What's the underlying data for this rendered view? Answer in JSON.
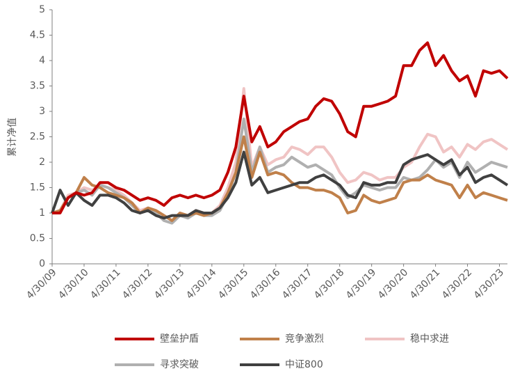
{
  "chart_data": {
    "type": "line",
    "y_label": "累计净值",
    "categories": [
      "4/30/09",
      null,
      null,
      null,
      "4/30/10",
      null,
      null,
      null,
      "4/30/11",
      null,
      null,
      null,
      "4/30/12",
      null,
      null,
      null,
      "4/30/13",
      null,
      null,
      null,
      "4/30/14",
      null,
      null,
      null,
      "4/30/15",
      null,
      null,
      null,
      "4/30/16",
      null,
      null,
      null,
      "4/30/17",
      null,
      null,
      null,
      "4/30/18",
      null,
      null,
      null,
      "4/30/19",
      null,
      null,
      null,
      "4/30/20",
      null,
      null,
      null,
      "4/30/21",
      null,
      null,
      null,
      "4/30/22",
      null,
      null,
      null,
      "4/30/23",
      null
    ],
    "series": [
      {
        "name": "壁垒护盾",
        "color": "#c00000",
        "values": [
          1.0,
          1.0,
          1.3,
          1.4,
          1.35,
          1.4,
          1.6,
          1.6,
          1.5,
          1.45,
          1.35,
          1.25,
          1.3,
          1.25,
          1.15,
          1.3,
          1.35,
          1.3,
          1.35,
          1.3,
          1.35,
          1.45,
          1.8,
          2.3,
          3.3,
          2.4,
          2.7,
          2.3,
          2.4,
          2.6,
          2.7,
          2.8,
          2.85,
          3.1,
          3.25,
          3.2,
          2.95,
          2.6,
          2.5,
          3.1,
          3.1,
          3.15,
          3.2,
          3.3,
          3.9,
          3.9,
          4.2,
          4.35,
          3.9,
          4.1,
          3.8,
          3.6,
          3.7,
          3.3,
          3.8,
          3.75,
          3.8,
          3.65
        ]
      },
      {
        "name": "竞争激烈",
        "color": "#c0804a",
        "values": [
          1.0,
          1.05,
          1.3,
          1.4,
          1.7,
          1.55,
          1.5,
          1.4,
          1.35,
          1.3,
          1.2,
          1.0,
          1.1,
          1.05,
          0.95,
          0.85,
          1.0,
          0.95,
          1.0,
          0.95,
          1.0,
          1.1,
          1.4,
          1.8,
          2.5,
          1.7,
          2.2,
          1.75,
          1.8,
          1.75,
          1.6,
          1.5,
          1.5,
          1.45,
          1.45,
          1.4,
          1.3,
          1.0,
          1.05,
          1.35,
          1.25,
          1.2,
          1.25,
          1.3,
          1.6,
          1.65,
          1.65,
          1.75,
          1.65,
          1.6,
          1.55,
          1.3,
          1.55,
          1.3,
          1.4,
          1.35,
          1.3,
          1.25
        ]
      },
      {
        "name": "稳中求进",
        "color": "#f0c4c4",
        "values": [
          1.0,
          1.05,
          1.35,
          1.4,
          1.5,
          1.45,
          1.55,
          1.5,
          1.45,
          1.35,
          1.2,
          1.05,
          1.1,
          1.05,
          0.95,
          0.85,
          1.0,
          0.95,
          1.05,
          1.0,
          1.0,
          1.15,
          1.5,
          2.0,
          3.45,
          1.9,
          2.3,
          1.95,
          2.05,
          2.1,
          2.3,
          2.25,
          2.15,
          2.3,
          2.3,
          2.1,
          1.8,
          1.6,
          1.65,
          1.8,
          1.75,
          1.65,
          1.7,
          1.7,
          1.9,
          2.0,
          2.3,
          2.55,
          2.5,
          2.2,
          2.3,
          2.1,
          2.35,
          2.25,
          2.4,
          2.45,
          2.35,
          2.25
        ]
      },
      {
        "name": "寻求突破",
        "color": "#b0b0b0",
        "values": [
          1.0,
          1.05,
          1.3,
          1.4,
          1.45,
          1.35,
          1.55,
          1.5,
          1.4,
          1.3,
          1.15,
          1.0,
          1.05,
          1.0,
          0.85,
          0.8,
          0.95,
          0.9,
          1.0,
          0.95,
          0.95,
          1.05,
          1.35,
          1.8,
          2.85,
          1.8,
          2.3,
          1.8,
          1.9,
          1.95,
          2.1,
          2.0,
          1.9,
          1.95,
          1.85,
          1.75,
          1.5,
          1.3,
          1.4,
          1.55,
          1.5,
          1.45,
          1.5,
          1.5,
          1.7,
          1.65,
          1.7,
          1.85,
          2.05,
          1.9,
          2.0,
          1.7,
          2.0,
          1.8,
          1.9,
          2.0,
          1.95,
          1.9
        ]
      },
      {
        "name": "中证800",
        "color": "#404040",
        "values": [
          1.0,
          1.45,
          1.15,
          1.4,
          1.25,
          1.15,
          1.35,
          1.35,
          1.3,
          1.2,
          1.05,
          1.0,
          1.05,
          0.95,
          0.9,
          0.95,
          0.95,
          0.95,
          1.05,
          1.0,
          1.0,
          1.1,
          1.3,
          1.6,
          2.2,
          1.55,
          1.7,
          1.4,
          1.45,
          1.5,
          1.55,
          1.6,
          1.6,
          1.7,
          1.75,
          1.65,
          1.55,
          1.35,
          1.3,
          1.6,
          1.55,
          1.55,
          1.6,
          1.6,
          1.95,
          2.05,
          2.1,
          2.15,
          2.05,
          1.95,
          2.05,
          1.75,
          1.9,
          1.6,
          1.7,
          1.75,
          1.65,
          1.55
        ]
      }
    ],
    "ylim": [
      0,
      5
    ],
    "yticks": [
      0,
      0.5,
      1,
      1.5,
      2,
      2.5,
      3,
      3.5,
      4,
      4.5,
      5
    ],
    "grid": false,
    "legend": "bottom"
  }
}
